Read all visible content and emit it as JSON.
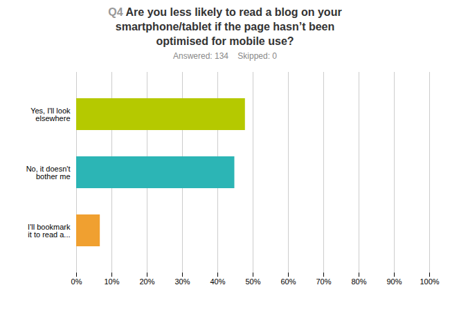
{
  "chart_data": {
    "type": "bar",
    "orientation": "horizontal",
    "title": "Q4 Are you less likely to read a blog on your\nsmartphone/tablet if the page hasn’t been\noptimised for mobile use?",
    "subtitle": "Answered: 134    Skipped: 0",
    "categories": [
      "Yes, I'll look\nelsewhere",
      "No, it doesn't\nbother me",
      "I'll bookmark\nit to read a..."
    ],
    "values": [
      0.478,
      0.448,
      0.067
    ],
    "colors": [
      "#b5c900",
      "#2cb5b5",
      "#f0a030"
    ],
    "xlim": [
      0,
      1.0
    ],
    "xticks": [
      {
        "value": 0,
        "label": "0%"
      },
      {
        "value": 0.1,
        "label": "10%"
      },
      {
        "value": 0.2,
        "label": "20%"
      },
      {
        "value": 0.3,
        "label": "30%"
      },
      {
        "value": 0.4,
        "label": "40%"
      },
      {
        "value": 0.5,
        "label": "50%"
      },
      {
        "value": 0.6,
        "label": "60%"
      },
      {
        "value": 0.7,
        "label": "70%"
      },
      {
        "value": 0.8,
        "label": "80%"
      },
      {
        "value": 0.9,
        "label": "90%"
      },
      {
        "value": 1.0,
        "label": "100%"
      }
    ],
    "grid": true
  }
}
